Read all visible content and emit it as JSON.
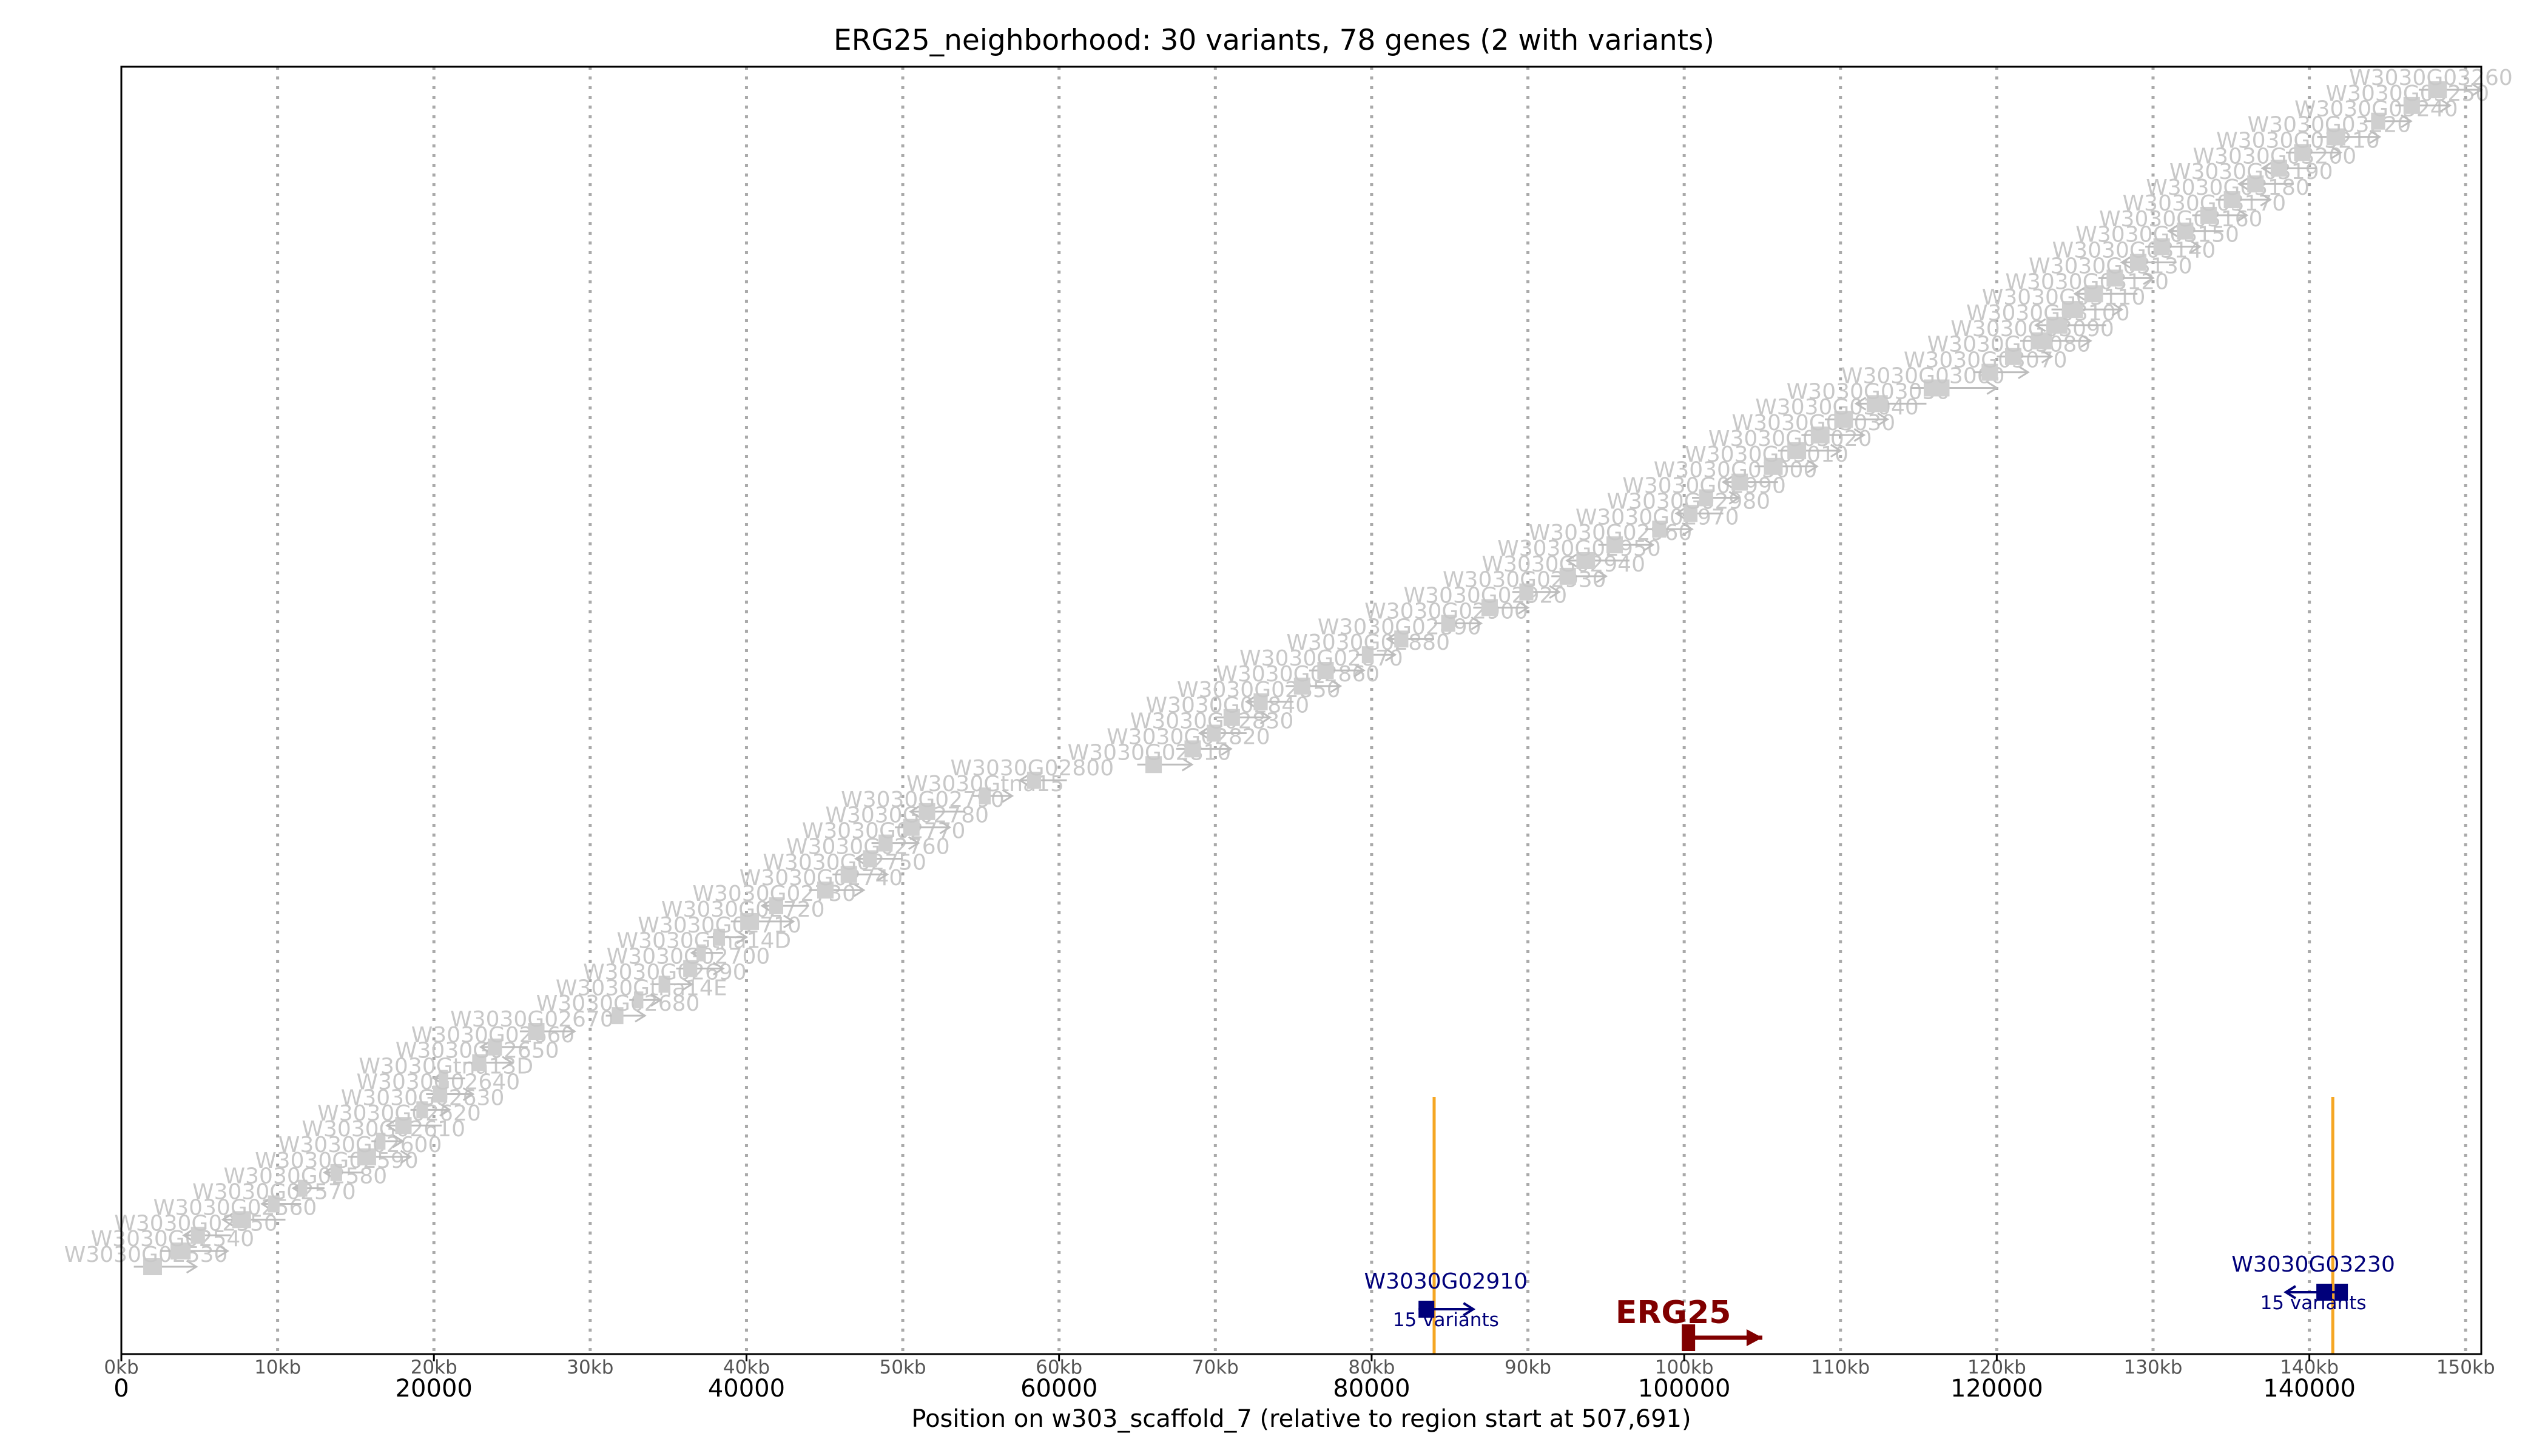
{
  "chart_data": {
    "type": "genome-track",
    "title": "ERG25_neighborhood: 30 variants, 78 genes (2 with variants)",
    "xlabel": "Position on w303_scaffold_7 (relative to region start at 507,691)",
    "xlim": [
      0,
      151000
    ],
    "major_ticks": [
      {
        "value": 0,
        "label": "0"
      },
      {
        "value": 20000,
        "label": "20000"
      },
      {
        "value": 40000,
        "label": "40000"
      },
      {
        "value": 60000,
        "label": "60000"
      },
      {
        "value": 80000,
        "label": "80000"
      },
      {
        "value": 100000,
        "label": "100000"
      },
      {
        "value": 120000,
        "label": "120000"
      },
      {
        "value": 140000,
        "label": "140000"
      }
    ],
    "kb_ticks": [
      {
        "value": 0,
        "label": "0kb"
      },
      {
        "value": 10000,
        "label": "10kb"
      },
      {
        "value": 20000,
        "label": "20kb"
      },
      {
        "value": 30000,
        "label": "30kb"
      },
      {
        "value": 40000,
        "label": "40kb"
      },
      {
        "value": 50000,
        "label": "50kb"
      },
      {
        "value": 60000,
        "label": "60kb"
      },
      {
        "value": 70000,
        "label": "70kb"
      },
      {
        "value": 80000,
        "label": "80kb"
      },
      {
        "value": 90000,
        "label": "90kb"
      },
      {
        "value": 100000,
        "label": "100kb"
      },
      {
        "value": 110000,
        "label": "110kb"
      },
      {
        "value": 120000,
        "label": "120kb"
      },
      {
        "value": 130000,
        "label": "130kb"
      },
      {
        "value": 140000,
        "label": "140kb"
      },
      {
        "value": 150000,
        "label": "150kb"
      }
    ],
    "vertical_grid": true,
    "variant_positions": [
      84000,
      141500
    ],
    "highlighted_genes": [
      {
        "name": "W3030G02910",
        "sub_label": "15 variants",
        "start": 83000,
        "end": 86500,
        "strand": "+"
      },
      {
        "name": "W3030G03230",
        "sub_label": "15 variants",
        "start": 138500,
        "end": 142000,
        "strand": "-"
      }
    ],
    "focus_gene": {
      "name": "ERG25",
      "start": 100000,
      "end": 105000,
      "strand": "+"
    },
    "background_genes": [
      {
        "name": "W3030G02530",
        "start": 800,
        "end": 4800,
        "strand": "+"
      },
      {
        "name": "W3030G02540",
        "start": 2500,
        "end": 6800,
        "strand": "+"
      },
      {
        "name": "W3030G02550",
        "start": 4000,
        "end": 7000,
        "strand": "-"
      },
      {
        "name": "W3030G02560",
        "start": 6500,
        "end": 10500,
        "strand": "-"
      },
      {
        "name": "W3030G02570",
        "start": 9000,
        "end": 11500,
        "strand": "-"
      },
      {
        "name": "W3030G02580",
        "start": 11000,
        "end": 13000,
        "strand": "-"
      },
      {
        "name": "W3030G02590",
        "start": 13000,
        "end": 15500,
        "strand": "-"
      },
      {
        "name": "W3030G02600",
        "start": 14500,
        "end": 18500,
        "strand": "+"
      },
      {
        "name": "W3030G02610",
        "start": 16000,
        "end": 18000,
        "strand": "+"
      },
      {
        "name": "W3030G02620",
        "start": 17000,
        "end": 20500,
        "strand": "-"
      },
      {
        "name": "W3030G02630",
        "start": 18500,
        "end": 21000,
        "strand": "+"
      },
      {
        "name": "W3030G02640",
        "start": 19500,
        "end": 22500,
        "strand": "+"
      },
      {
        "name": "W3030Gtna13D",
        "start": 20000,
        "end": 22000,
        "strand": "-"
      },
      {
        "name": "W3030G02650",
        "start": 22000,
        "end": 25000,
        "strand": "+"
      },
      {
        "name": "W3030G02660",
        "start": 23000,
        "end": 26000,
        "strand": "-"
      },
      {
        "name": "W3030G02670",
        "start": 25500,
        "end": 29000,
        "strand": "+"
      },
      {
        "name": "W3030G02680",
        "start": 31000,
        "end": 33500,
        "strand": "+"
      },
      {
        "name": "W3030Gtna14E",
        "start": 32500,
        "end": 34500,
        "strand": "+"
      },
      {
        "name": "W3030G02690",
        "start": 34000,
        "end": 36500,
        "strand": "+"
      },
      {
        "name": "W3030G02700",
        "start": 35500,
        "end": 38500,
        "strand": "+"
      },
      {
        "name": "W3030Gtna14D",
        "start": 36500,
        "end": 38500,
        "strand": "-"
      },
      {
        "name": "W3030G02710",
        "start": 37500,
        "end": 40000,
        "strand": "+"
      },
      {
        "name": "W3030G02720",
        "start": 39000,
        "end": 43000,
        "strand": "+"
      },
      {
        "name": "W3030G02730",
        "start": 41000,
        "end": 44000,
        "strand": "-"
      },
      {
        "name": "W3030G02740",
        "start": 44000,
        "end": 47500,
        "strand": "+"
      },
      {
        "name": "W3030G02750",
        "start": 45500,
        "end": 49000,
        "strand": "+"
      },
      {
        "name": "W3030G02760",
        "start": 47000,
        "end": 50000,
        "strand": "-"
      },
      {
        "name": "W3030G02770",
        "start": 48000,
        "end": 51000,
        "strand": "+"
      },
      {
        "name": "W3030G02780",
        "start": 49500,
        "end": 53000,
        "strand": "+"
      },
      {
        "name": "W3030G02790",
        "start": 50500,
        "end": 54000,
        "strand": "-"
      },
      {
        "name": "W3030Gtna15",
        "start": 54500,
        "end": 57000,
        "strand": "+"
      },
      {
        "name": "W3030G02800",
        "start": 57500,
        "end": 60500,
        "strand": "-"
      },
      {
        "name": "W3030G02810",
        "start": 65000,
        "end": 68500,
        "strand": "+"
      },
      {
        "name": "W3030G02820",
        "start": 67500,
        "end": 71000,
        "strand": "+"
      },
      {
        "name": "W3030G02830",
        "start": 69000,
        "end": 72000,
        "strand": "-"
      },
      {
        "name": "W3030G02840",
        "start": 70000,
        "end": 73500,
        "strand": "+"
      },
      {
        "name": "W3030G02850",
        "start": 72000,
        "end": 75000,
        "strand": "-"
      },
      {
        "name": "W3030G02860",
        "start": 74500,
        "end": 78000,
        "strand": "+"
      },
      {
        "name": "W3030G02870",
        "start": 76000,
        "end": 79500,
        "strand": "+"
      },
      {
        "name": "W3030G02880",
        "start": 79000,
        "end": 81500,
        "strand": "+"
      },
      {
        "name": "W3030G02890",
        "start": 81000,
        "end": 84000,
        "strand": "-"
      },
      {
        "name": "W3030G02900",
        "start": 84000,
        "end": 87000,
        "strand": "+"
      },
      {
        "name": "W3030G02920",
        "start": 86500,
        "end": 90000,
        "strand": "+"
      },
      {
        "name": "W3030G02930",
        "start": 89000,
        "end": 92000,
        "strand": "+"
      },
      {
        "name": "W3030G02940",
        "start": 91500,
        "end": 95000,
        "strand": "+"
      },
      {
        "name": "W3030G02950",
        "start": 92500,
        "end": 96500,
        "strand": "-"
      },
      {
        "name": "W3030G02960",
        "start": 94500,
        "end": 98000,
        "strand": "+"
      },
      {
        "name": "W3030G02970",
        "start": 97500,
        "end": 100500,
        "strand": "+"
      },
      {
        "name": "W3030G02980",
        "start": 99500,
        "end": 102500,
        "strand": "-"
      },
      {
        "name": "W3030G02990",
        "start": 100500,
        "end": 103500,
        "strand": "+"
      },
      {
        "name": "W3030G03000",
        "start": 102500,
        "end": 106000,
        "strand": "-"
      },
      {
        "name": "W3030G03010",
        "start": 104500,
        "end": 108500,
        "strand": "+"
      },
      {
        "name": "W3030G03020",
        "start": 106000,
        "end": 110000,
        "strand": "+"
      },
      {
        "name": "W3030G03030",
        "start": 107500,
        "end": 111500,
        "strand": "+"
      },
      {
        "name": "W3030G03040",
        "start": 109000,
        "end": 113000,
        "strand": "+"
      },
      {
        "name": "W3030G03050",
        "start": 111000,
        "end": 115500,
        "strand": "-"
      },
      {
        "name": "W3030G03060",
        "start": 114500,
        "end": 120000,
        "strand": "+"
      },
      {
        "name": "W3030G03070",
        "start": 118500,
        "end": 122000,
        "strand": "+"
      },
      {
        "name": "W3030G03080",
        "start": 120000,
        "end": 123500,
        "strand": "+"
      },
      {
        "name": "W3030G03090",
        "start": 121500,
        "end": 126000,
        "strand": "+"
      },
      {
        "name": "W3030G03100",
        "start": 122500,
        "end": 127000,
        "strand": "-"
      },
      {
        "name": "W3030G03110",
        "start": 123500,
        "end": 128000,
        "strand": "+"
      },
      {
        "name": "W3030G03120",
        "start": 125000,
        "end": 129000,
        "strand": "-"
      },
      {
        "name": "W3030G03130",
        "start": 126500,
        "end": 130000,
        "strand": "+"
      },
      {
        "name": "W3030G03140",
        "start": 128000,
        "end": 131500,
        "strand": "-"
      },
      {
        "name": "W3030G03150",
        "start": 129500,
        "end": 133000,
        "strand": "+"
      },
      {
        "name": "W3030G03160",
        "start": 131000,
        "end": 134500,
        "strand": "-"
      },
      {
        "name": "W3030G03170",
        "start": 132500,
        "end": 136000,
        "strand": "+"
      },
      {
        "name": "W3030G03180",
        "start": 134000,
        "end": 137500,
        "strand": "+"
      },
      {
        "name": "W3030G03190",
        "start": 135500,
        "end": 139000,
        "strand": "-"
      },
      {
        "name": "W3030G03200",
        "start": 137000,
        "end": 140500,
        "strand": "-"
      },
      {
        "name": "W3030G03210",
        "start": 138500,
        "end": 142000,
        "strand": "+"
      },
      {
        "name": "W3030G03220",
        "start": 140500,
        "end": 144500,
        "strand": "+"
      },
      {
        "name": "W3030G03240",
        "start": 143500,
        "end": 146500,
        "strand": "+"
      },
      {
        "name": "W3030G03250",
        "start": 145500,
        "end": 149000,
        "strand": "+"
      },
      {
        "name": "W3030G03260",
        "start": 147000,
        "end": 151000,
        "strand": "+"
      }
    ]
  }
}
